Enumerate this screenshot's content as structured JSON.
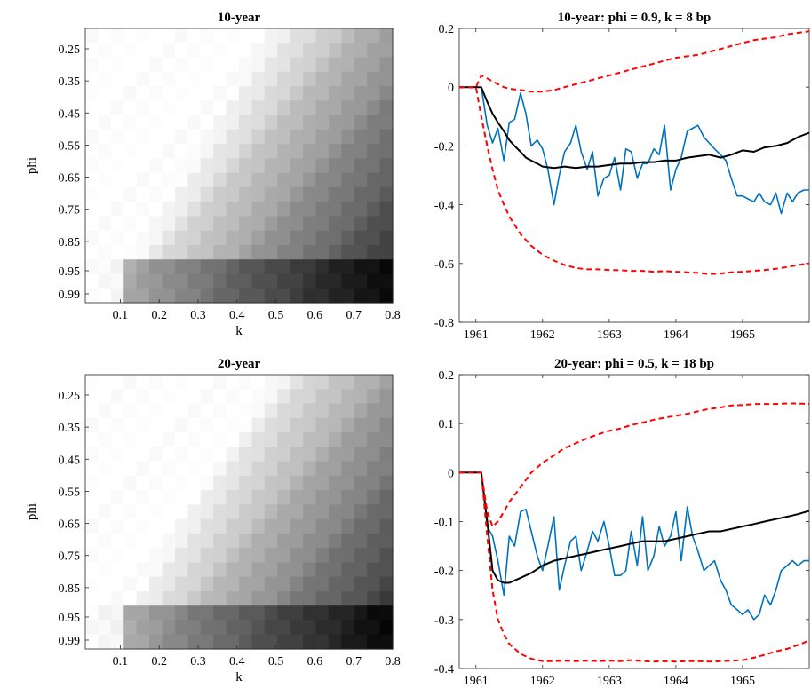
{
  "chart_data": [
    {
      "type": "heatmap",
      "title": "10-year",
      "xlabel": "k",
      "ylabel": "phi",
      "xticks": [
        "0.1",
        "0.2",
        "0.3",
        "0.4",
        "0.5",
        "0.6",
        "0.7",
        "0.8"
      ],
      "yticks": [
        "0.25",
        "0.35",
        "0.45",
        "0.55",
        "0.65",
        "0.75",
        "0.85",
        "0.95",
        "0.99"
      ],
      "x_range": [
        0.01,
        0.8
      ],
      "y_range": [
        0.2,
        0.99
      ],
      "colormap": "gray",
      "description_values": "darkness increases with k and with phi; darkest at k=0.8, phi=0.99"
    },
    {
      "type": "line",
      "title": "10-year: phi = 0.9, k = 8 bp",
      "xticks": [
        "1961",
        "1962",
        "1963",
        "1964",
        "1965"
      ],
      "yticks": [
        "-0.8",
        "-0.6",
        "-0.4",
        "-0.2",
        "0",
        "0.2"
      ],
      "xlim": [
        1960.75,
        1966.0
      ],
      "ylim": [
        -0.8,
        0.2
      ],
      "series": [
        {
          "color": "#0072bd",
          "style": "solid",
          "x": [
            1960.75,
            1960.83,
            1960.92,
            1961.0,
            1961.08,
            1961.17,
            1961.25,
            1961.33,
            1961.42,
            1961.5,
            1961.58,
            1961.67,
            1961.75,
            1961.83,
            1961.92,
            1962.0,
            1962.08,
            1962.17,
            1962.25,
            1962.33,
            1962.42,
            1962.5,
            1962.58,
            1962.67,
            1962.75,
            1962.83,
            1962.92,
            1963.0,
            1963.08,
            1963.17,
            1963.25,
            1963.33,
            1963.42,
            1963.5,
            1963.58,
            1963.67,
            1963.75,
            1963.83,
            1963.92,
            1964.0,
            1964.08,
            1964.17,
            1964.25,
            1964.33,
            1964.42,
            1964.5,
            1964.58,
            1964.67,
            1964.75,
            1964.83,
            1964.92,
            1965.0,
            1965.08,
            1965.17,
            1965.25,
            1965.33,
            1965.42,
            1965.5,
            1965.58,
            1965.67,
            1965.75,
            1965.83,
            1965.92,
            1966.0
          ],
          "y": [
            0,
            0,
            0,
            0,
            0,
            -0.13,
            -0.19,
            -0.14,
            -0.25,
            -0.12,
            -0.11,
            -0.02,
            -0.09,
            -0.2,
            -0.18,
            -0.21,
            -0.28,
            -0.4,
            -0.3,
            -0.22,
            -0.19,
            -0.13,
            -0.22,
            -0.28,
            -0.22,
            -0.37,
            -0.31,
            -0.3,
            -0.24,
            -0.35,
            -0.21,
            -0.22,
            -0.31,
            -0.26,
            -0.26,
            -0.21,
            -0.23,
            -0.13,
            -0.35,
            -0.28,
            -0.24,
            -0.15,
            -0.14,
            -0.13,
            -0.17,
            -0.19,
            -0.21,
            -0.23,
            -0.25,
            -0.31,
            -0.37,
            -0.37,
            -0.38,
            -0.39,
            -0.36,
            -0.39,
            -0.4,
            -0.36,
            -0.43,
            -0.36,
            -0.39,
            -0.36,
            -0.35,
            -0.35
          ]
        },
        {
          "color": "#000000",
          "style": "solid",
          "x": [
            1960.75,
            1961.0,
            1961.08,
            1961.17,
            1961.25,
            1961.33,
            1961.42,
            1961.5,
            1961.58,
            1961.67,
            1961.75,
            1961.83,
            1961.92,
            1962.0,
            1962.17,
            1962.33,
            1962.5,
            1962.67,
            1962.83,
            1963.0,
            1963.17,
            1963.33,
            1963.5,
            1963.67,
            1963.83,
            1964.0,
            1964.17,
            1964.33,
            1964.5,
            1964.67,
            1964.83,
            1965.0,
            1965.17,
            1965.33,
            1965.5,
            1965.67,
            1965.83,
            1966.0
          ],
          "y": [
            0,
            0,
            0,
            -0.05,
            -0.09,
            -0.12,
            -0.15,
            -0.18,
            -0.2,
            -0.22,
            -0.24,
            -0.25,
            -0.26,
            -0.27,
            -0.275,
            -0.27,
            -0.275,
            -0.27,
            -0.27,
            -0.265,
            -0.26,
            -0.26,
            -0.255,
            -0.255,
            -0.25,
            -0.25,
            -0.24,
            -0.235,
            -0.23,
            -0.24,
            -0.23,
            -0.215,
            -0.22,
            -0.205,
            -0.2,
            -0.19,
            -0.17,
            -0.155
          ]
        },
        {
          "color": "#ff0000",
          "style": "dashed",
          "x": [
            1960.75,
            1961.0,
            1961.08,
            1961.17,
            1961.25,
            1961.33,
            1961.42,
            1961.5,
            1961.67,
            1961.83,
            1962.0,
            1962.17,
            1962.33,
            1962.5,
            1962.67,
            1962.83,
            1963.0,
            1963.17,
            1963.33,
            1963.5,
            1963.67,
            1963.83,
            1964.0,
            1964.17,
            1964.33,
            1964.5,
            1964.67,
            1964.83,
            1965.0,
            1965.17,
            1965.33,
            1965.5,
            1965.67,
            1965.83,
            1966.0
          ],
          "y": [
            0,
            0,
            0.04,
            0.03,
            0.02,
            0.01,
            0.0,
            -0.005,
            -0.01,
            -0.015,
            -0.015,
            -0.01,
            0.0,
            0.01,
            0.02,
            0.03,
            0.04,
            0.05,
            0.06,
            0.07,
            0.08,
            0.09,
            0.1,
            0.105,
            0.11,
            0.12,
            0.13,
            0.14,
            0.15,
            0.16,
            0.165,
            0.17,
            0.18,
            0.185,
            0.19
          ]
        },
        {
          "color": "#ff0000",
          "style": "dashed",
          "x": [
            1960.75,
            1961.0,
            1961.08,
            1961.17,
            1961.25,
            1961.33,
            1961.42,
            1961.5,
            1961.67,
            1961.83,
            1962.0,
            1962.17,
            1962.33,
            1962.5,
            1962.67,
            1962.83,
            1963.0,
            1963.17,
            1963.33,
            1963.5,
            1963.67,
            1963.83,
            1964.0,
            1964.17,
            1964.33,
            1964.5,
            1964.67,
            1964.83,
            1965.0,
            1965.17,
            1965.33,
            1965.5,
            1965.67,
            1965.83,
            1966.0
          ],
          "y": [
            0,
            0,
            -0.1,
            -0.2,
            -0.28,
            -0.35,
            -0.4,
            -0.44,
            -0.5,
            -0.54,
            -0.57,
            -0.59,
            -0.605,
            -0.615,
            -0.62,
            -0.62,
            -0.622,
            -0.623,
            -0.625,
            -0.625,
            -0.628,
            -0.626,
            -0.628,
            -0.63,
            -0.632,
            -0.636,
            -0.634,
            -0.63,
            -0.628,
            -0.625,
            -0.622,
            -0.618,
            -0.612,
            -0.605,
            -0.6
          ]
        }
      ]
    },
    {
      "type": "heatmap",
      "title": "20-year",
      "xlabel": "k",
      "ylabel": "phi",
      "xticks": [
        "0.1",
        "0.2",
        "0.3",
        "0.4",
        "0.5",
        "0.6",
        "0.7",
        "0.8"
      ],
      "yticks": [
        "0.25",
        "0.35",
        "0.45",
        "0.55",
        "0.65",
        "0.75",
        "0.85",
        "0.95",
        "0.99"
      ],
      "x_range": [
        0.01,
        0.8
      ],
      "y_range": [
        0.2,
        0.99
      ],
      "colormap": "gray",
      "description_values": "darkness increases with k and with phi; darkest at k=0.8, phi=0.99"
    },
    {
      "type": "line",
      "title": "20-year: phi = 0.5, k = 18 bp",
      "xticks": [
        "1961",
        "1962",
        "1963",
        "1964",
        "1965"
      ],
      "yticks": [
        "-0.4",
        "-0.3",
        "-0.2",
        "-0.1",
        "0",
        "0.1",
        "0.2"
      ],
      "xlim": [
        1960.75,
        1966.0
      ],
      "ylim": [
        -0.4,
        0.2
      ],
      "series": [
        {
          "color": "#0072bd",
          "style": "solid",
          "x": [
            1960.75,
            1960.83,
            1960.92,
            1961.0,
            1961.08,
            1961.17,
            1961.25,
            1961.33,
            1961.42,
            1961.5,
            1961.58,
            1961.67,
            1961.75,
            1961.83,
            1961.92,
            1962.0,
            1962.08,
            1962.17,
            1962.25,
            1962.33,
            1962.42,
            1962.5,
            1962.58,
            1962.67,
            1962.75,
            1962.83,
            1962.92,
            1963.0,
            1963.08,
            1963.17,
            1963.25,
            1963.33,
            1963.42,
            1963.5,
            1963.58,
            1963.67,
            1963.75,
            1963.83,
            1963.92,
            1964.0,
            1964.08,
            1964.17,
            1964.25,
            1964.33,
            1964.42,
            1964.5,
            1964.58,
            1964.67,
            1964.75,
            1964.83,
            1964.92,
            1965.0,
            1965.08,
            1965.17,
            1965.25,
            1965.33,
            1965.42,
            1965.5,
            1965.58,
            1965.67,
            1965.75,
            1965.83,
            1965.92,
            1966.0
          ],
          "y": [
            0,
            0,
            0,
            0,
            0,
            -0.11,
            -0.13,
            -0.18,
            -0.25,
            -0.13,
            -0.15,
            -0.08,
            -0.075,
            -0.12,
            -0.17,
            -0.2,
            -0.15,
            -0.09,
            -0.24,
            -0.19,
            -0.14,
            -0.13,
            -0.2,
            -0.16,
            -0.12,
            -0.14,
            -0.1,
            -0.15,
            -0.21,
            -0.21,
            -0.2,
            -0.12,
            -0.19,
            -0.09,
            -0.2,
            -0.17,
            -0.11,
            -0.15,
            -0.13,
            -0.08,
            -0.18,
            -0.07,
            -0.13,
            -0.16,
            -0.2,
            -0.19,
            -0.18,
            -0.22,
            -0.24,
            -0.27,
            -0.28,
            -0.29,
            -0.28,
            -0.3,
            -0.29,
            -0.25,
            -0.27,
            -0.24,
            -0.2,
            -0.19,
            -0.18,
            -0.19,
            -0.18,
            -0.18
          ]
        },
        {
          "color": "#000000",
          "style": "solid",
          "x": [
            1960.75,
            1961.0,
            1961.08,
            1961.17,
            1961.25,
            1961.33,
            1961.42,
            1961.5,
            1961.67,
            1961.83,
            1962.0,
            1962.17,
            1962.33,
            1962.5,
            1962.67,
            1962.83,
            1963.0,
            1963.17,
            1963.33,
            1963.5,
            1963.67,
            1963.83,
            1964.0,
            1964.17,
            1964.33,
            1964.5,
            1964.67,
            1964.83,
            1965.0,
            1965.17,
            1965.33,
            1965.5,
            1965.67,
            1965.83,
            1966.0
          ],
          "y": [
            0,
            0,
            0,
            -0.1,
            -0.2,
            -0.22,
            -0.225,
            -0.225,
            -0.215,
            -0.205,
            -0.19,
            -0.18,
            -0.175,
            -0.17,
            -0.165,
            -0.16,
            -0.155,
            -0.15,
            -0.145,
            -0.14,
            -0.14,
            -0.14,
            -0.135,
            -0.13,
            -0.125,
            -0.12,
            -0.12,
            -0.115,
            -0.11,
            -0.105,
            -0.1,
            -0.095,
            -0.09,
            -0.085,
            -0.078
          ]
        },
        {
          "color": "#ff0000",
          "style": "dashed",
          "x": [
            1960.75,
            1961.0,
            1961.08,
            1961.17,
            1961.25,
            1961.33,
            1961.42,
            1961.5,
            1961.67,
            1961.83,
            1962.0,
            1962.17,
            1962.33,
            1962.5,
            1962.67,
            1962.83,
            1963.0,
            1963.17,
            1963.33,
            1963.5,
            1963.67,
            1963.83,
            1964.0,
            1964.17,
            1964.33,
            1964.5,
            1964.67,
            1964.83,
            1965.0,
            1965.17,
            1965.33,
            1965.5,
            1965.67,
            1965.83,
            1966.0
          ],
          "y": [
            0,
            0,
            0,
            -0.08,
            -0.11,
            -0.1,
            -0.08,
            -0.06,
            -0.03,
            0.0,
            0.02,
            0.035,
            0.05,
            0.06,
            0.07,
            0.078,
            0.085,
            0.09,
            0.097,
            0.102,
            0.108,
            0.112,
            0.116,
            0.12,
            0.125,
            0.13,
            0.133,
            0.137,
            0.138,
            0.14,
            0.14,
            0.14,
            0.141,
            0.141,
            0.14
          ]
        },
        {
          "color": "#ff0000",
          "style": "dashed",
          "x": [
            1960.75,
            1961.0,
            1961.08,
            1961.17,
            1961.25,
            1961.33,
            1961.42,
            1961.5,
            1961.67,
            1961.83,
            1962.0,
            1962.17,
            1962.33,
            1962.5,
            1962.67,
            1962.83,
            1963.0,
            1963.17,
            1963.33,
            1963.5,
            1963.67,
            1963.83,
            1964.0,
            1964.17,
            1964.33,
            1964.5,
            1964.67,
            1964.83,
            1965.0,
            1965.17,
            1965.33,
            1965.5,
            1965.67,
            1965.83,
            1966.0
          ],
          "y": [
            0,
            0,
            0,
            -0.13,
            -0.24,
            -0.3,
            -0.33,
            -0.35,
            -0.37,
            -0.38,
            -0.385,
            -0.385,
            -0.384,
            -0.385,
            -0.384,
            -0.385,
            -0.384,
            -0.385,
            -0.383,
            -0.385,
            -0.386,
            -0.385,
            -0.386,
            -0.385,
            -0.385,
            -0.386,
            -0.385,
            -0.384,
            -0.383,
            -0.378,
            -0.372,
            -0.365,
            -0.36,
            -0.352,
            -0.343
          ]
        }
      ]
    }
  ]
}
